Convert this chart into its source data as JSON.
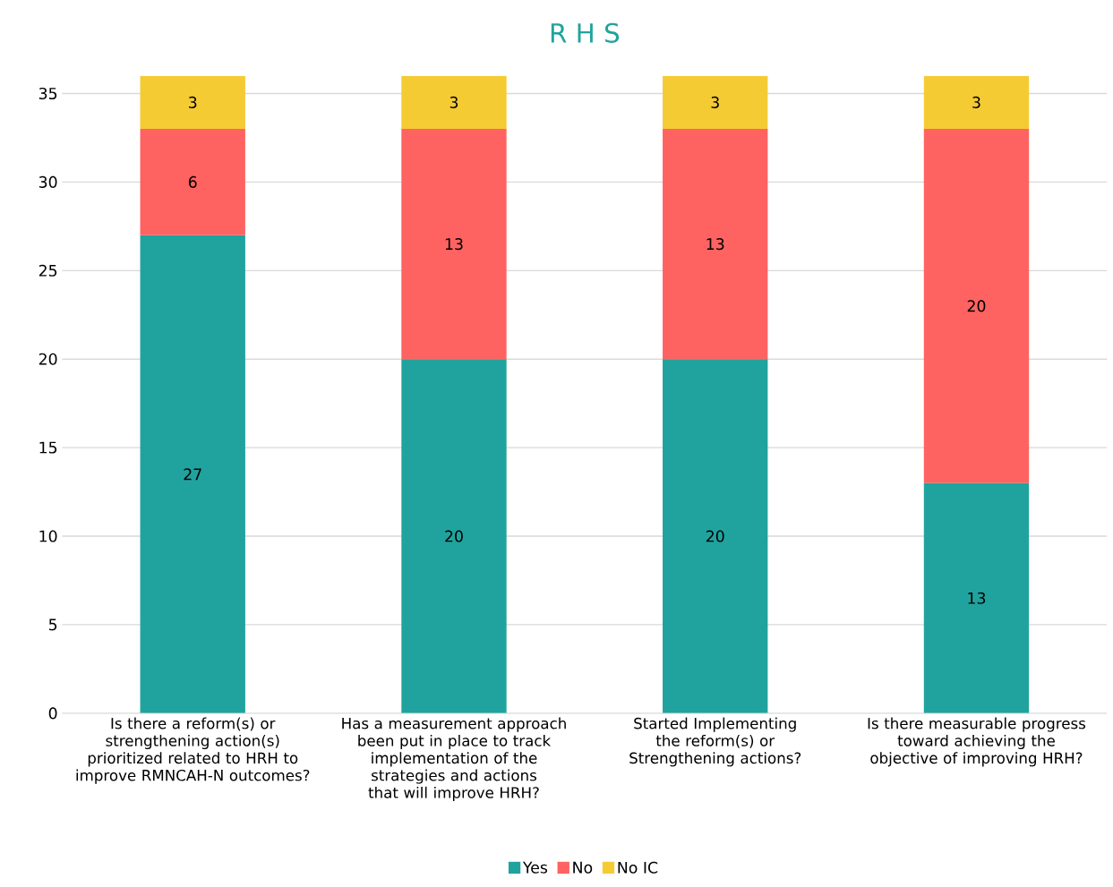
{
  "chart_data": {
    "type": "bar",
    "title": "R H S",
    "stacked": true,
    "categories": [
      "Is there a reform(s) or strengthening action(s) prioritized related to HRH to improve RMNCAH-N outcomes?",
      "Has a measurement approach been put in place to track implementation of the strategies and actions that will improve HRH?",
      "Started Implementing the reform(s) or Strengthening actions?",
      "Is there measurable progress toward achieving the objective of improving HRH?"
    ],
    "series": [
      {
        "name": "Yes",
        "color": "#20a39e",
        "values": [
          27,
          20,
          20,
          13
        ]
      },
      {
        "name": "No",
        "color": "#ff6361",
        "values": [
          6,
          13,
          13,
          20
        ]
      },
      {
        "name": "No IC",
        "color": "#f5cb34",
        "values": [
          3,
          3,
          3,
          3
        ]
      }
    ],
    "ylim": [
      0,
      36
    ],
    "yticks": [
      0,
      5,
      10,
      15,
      20,
      25,
      30,
      35
    ],
    "grid": "y",
    "legend": "bottom",
    "data_labels": true
  }
}
